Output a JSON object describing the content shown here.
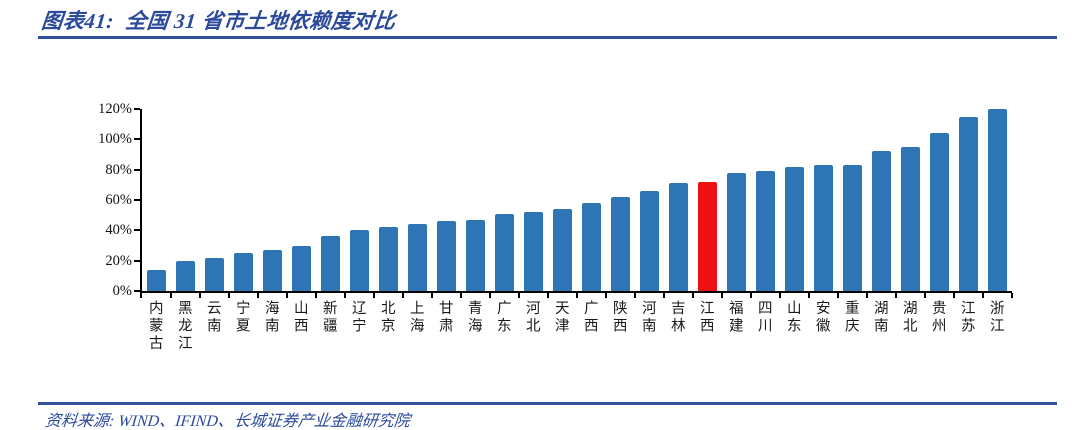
{
  "header": {
    "title": "图表41:  全国 31 省市土地依赖度对比"
  },
  "footer": {
    "source": "资料来源: WIND、IFIND、长城证券产业金融研究院"
  },
  "colors": {
    "accent_line": "#31519f",
    "heading_text": "#2b4a9b",
    "bar_blue": "#2e75b6",
    "bar_red": "#ee1111",
    "axis": "#000000"
  },
  "chart_data": {
    "type": "bar",
    "title": "全国 31 省市土地依赖度对比",
    "xlabel": "",
    "ylabel": "",
    "ylim": [
      0,
      120
    ],
    "grid": false,
    "legend": false,
    "y_tick_values": [
      0,
      20,
      40,
      60,
      80,
      100,
      120
    ],
    "y_tick_labels": [
      "0%",
      "20%",
      "40%",
      "60%",
      "80%",
      "100%",
      "120%"
    ],
    "categories": [
      "内蒙古",
      "黑龙江",
      "云南",
      "宁夏",
      "海南",
      "山西",
      "新疆",
      "辽宁",
      "北京",
      "上海",
      "甘肃",
      "青海",
      "广东",
      "河北",
      "天津",
      "广西",
      "陕西",
      "河南",
      "吉林",
      "江西",
      "福建",
      "四川",
      "山东",
      "安徽",
      "重庆",
      "湖南",
      "湖北",
      "贵州",
      "江苏",
      "浙江"
    ],
    "values": [
      14,
      20,
      22,
      25,
      27,
      30,
      36,
      40,
      42,
      44,
      46,
      47,
      51,
      52,
      54,
      58,
      62,
      66,
      71,
      72,
      78,
      79,
      82,
      83,
      83,
      92,
      95,
      104,
      115,
      120
    ],
    "highlight_category": "江西",
    "bar_color": "#2e75b6",
    "highlight_color": "#ee1111"
  }
}
